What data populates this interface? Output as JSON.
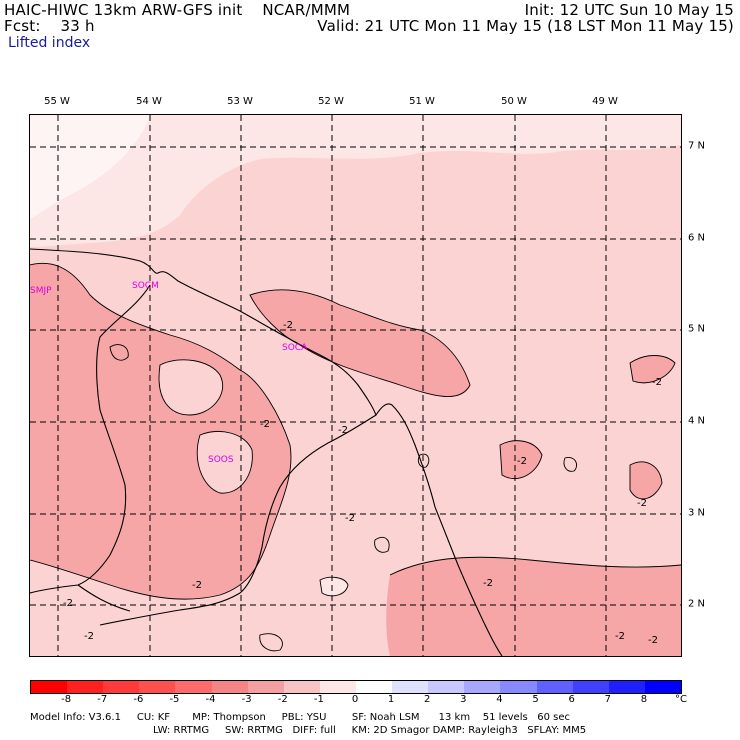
{
  "header": {
    "line1_left": "HAIC-HIWC 13km ARW-GFS init    NCAR/MMM",
    "line1_right": "Init: 12 UTC Sun 10 May 15",
    "line2_left": "Fcst:    33 h",
    "line2_right": "Valid: 21 UTC Mon 11 May 15 (18 LST Mon 11 May 15)",
    "field": "Lifted index"
  },
  "map": {
    "lon_labels": [
      "55 W",
      "54 W",
      "53 W",
      "52 W",
      "51 W",
      "50 W",
      "49 W"
    ],
    "lat_labels": [
      "7 N",
      "6 N",
      "5 N",
      "4 N",
      "3 N",
      "2 N"
    ],
    "stations": [
      "SMJP",
      "SOCM",
      "SOCA",
      "SOOS"
    ],
    "contour_label": "-2"
  },
  "colorbar": {
    "ticks": [
      "-8",
      "-7",
      "-6",
      "-5",
      "-4",
      "-3",
      "-2",
      "-1",
      "0",
      "1",
      "2",
      "3",
      "4",
      "5",
      "6",
      "7",
      "8"
    ],
    "unit": "°C",
    "colors": [
      "#ff0000",
      "#ff2020",
      "#ff3a3a",
      "#ff5050",
      "#ff6a6a",
      "#f58585",
      "#f4a0a0",
      "#f7c3c3",
      "#fde6e6",
      "#ffffff",
      "#e0e0ff",
      "#c8c8ff",
      "#a8a8ff",
      "#8888ff",
      "#6060ff",
      "#4040ff",
      "#2020ff",
      "#0000ff"
    ]
  },
  "footer": {
    "line1": "Model Info: V3.6.1     CU: KF       MP: Thompson     PBL: YSU        SF: Noah LSM      13 km    51 levels   60 sec",
    "line2": "LW: RRTMG     SW: RRTMG   DIFF: full     KM: 2D Smagor DAMP: Rayleigh3   SFLAY: MM5"
  }
}
